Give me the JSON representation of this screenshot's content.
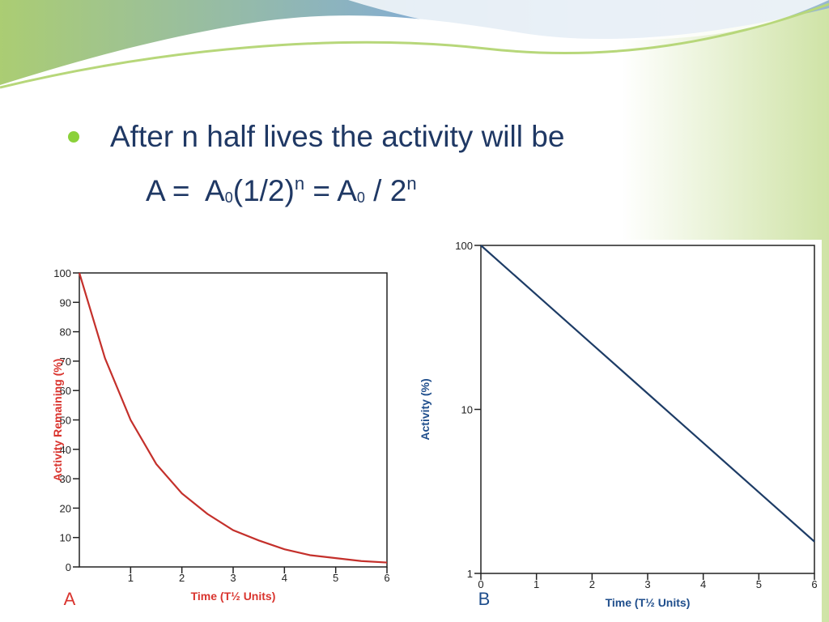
{
  "slide": {
    "bullet": "After n half lives the activity will be",
    "formula": [
      "A =  A",
      "0",
      "(1/2)",
      "n",
      " = A",
      "0",
      " / 2",
      "n"
    ]
  },
  "chart_data": [
    {
      "type": "line",
      "panel_label": "A",
      "x_label": "Time (T½ Units)",
      "y_label": "Activity Remaining (%)",
      "x": [
        0,
        0.5,
        1,
        1.5,
        2,
        2.5,
        3,
        3.5,
        4,
        4.5,
        5,
        5.5,
        6
      ],
      "values": [
        100,
        71,
        50,
        35,
        25,
        18,
        12.5,
        9,
        6,
        4,
        3,
        2,
        1.5
      ],
      "color": "#c4302b",
      "label_color": "#d9342e",
      "xlim": [
        0,
        6
      ],
      "ylim": [
        0,
        100
      ],
      "xticks": [
        1,
        2,
        3,
        4,
        5,
        6
      ],
      "yticks": [
        0,
        10,
        20,
        30,
        40,
        50,
        60,
        70,
        80,
        90,
        100
      ],
      "log_y": false
    },
    {
      "type": "line",
      "panel_label": "B",
      "x_label": "Time (T½ Units)",
      "y_label": "Activity (%)",
      "x": [
        0,
        1,
        2,
        3,
        4,
        5,
        6
      ],
      "values": [
        100,
        50,
        25,
        12.5,
        6.25,
        3.125,
        1.5625
      ],
      "color": "#1d3c66",
      "label_color": "#1f4e8c",
      "xlim": [
        0,
        6
      ],
      "ylim": [
        1,
        100
      ],
      "xticks": [
        0,
        1,
        2,
        3,
        4,
        5,
        6
      ],
      "yticks": [
        1,
        10,
        100
      ],
      "log_y": true
    }
  ]
}
